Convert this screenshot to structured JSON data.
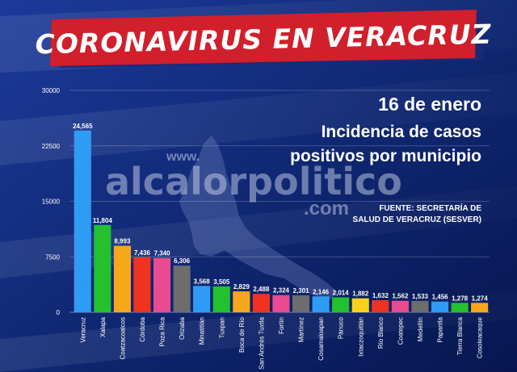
{
  "banner": {
    "title": "CORONAVIRUS EN VERACRUZ"
  },
  "info": {
    "date": "16 de enero",
    "line1": "Incidencia de casos",
    "line2": "positivos por municipio",
    "source_line1": "FUENTE: SECRETARÍA DE",
    "source_line2": "SALUD DE VERACRUZ (SESVER)"
  },
  "watermark": {
    "www": "www.",
    "brand": "alcalorpolitico",
    "tld": ".com"
  },
  "colors": {
    "background": "#0a1e5e",
    "banner_red": "#d11f2c",
    "banner_navy": "#1a2a7a"
  },
  "chart_data": {
    "type": "bar",
    "ylim": [
      0,
      30000
    ],
    "yticks": [
      "0",
      "7500",
      "15000",
      "22500",
      "30000"
    ],
    "grid": true,
    "categories": [
      "Veracruz",
      "Xalapa",
      "Coatzacoalcos",
      "Córdoba",
      "Poza Rica",
      "Orizaba",
      "Minatitlán",
      "Tuxpan",
      "Boca de Río",
      "San Andrés Tuxtla",
      "Fortín",
      "Martínez",
      "Cosamaloapan",
      "Pánuco",
      "Ixtaczoquitlán",
      "Río Blanco",
      "Coatepec",
      "Medellín",
      "Papantla",
      "Tierra Blanca",
      "Cosoleacaque"
    ],
    "values": [
      24565,
      11804,
      8993,
      7436,
      7340,
      6306,
      3568,
      3505,
      2829,
      2488,
      2324,
      2301,
      2146,
      2014,
      1882,
      1632,
      1562,
      1533,
      1456,
      1278,
      1274
    ],
    "value_labels": [
      "24,565",
      "11,804",
      "8,993",
      "7,436",
      "7,340",
      "6,306",
      "3,568",
      "3,505",
      "2,829",
      "2,488",
      "2,324",
      "2,301",
      "2,146",
      "2,014",
      "1,882",
      "1,632",
      "1,562",
      "1,533",
      "1,456",
      "1,278",
      "1,274"
    ],
    "bar_colors": [
      "#2e9cf4",
      "#23c02f",
      "#f7a71c",
      "#ef3320",
      "#e84b8f",
      "#6d6d6d",
      "#2e9cf4",
      "#23c02f",
      "#f7a71c",
      "#ef3320",
      "#e84b8f",
      "#6d6d6d",
      "#2e9cf4",
      "#23c02f",
      "#f7d21c",
      "#ef3320",
      "#e84b8f",
      "#6d6d6d",
      "#2e9cf4",
      "#23c02f",
      "#f7a71c"
    ]
  }
}
